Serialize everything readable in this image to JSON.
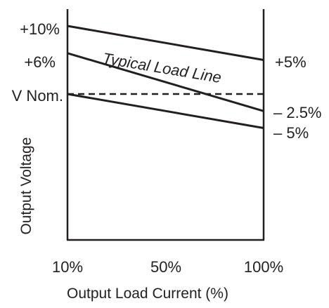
{
  "chart_data": {
    "type": "line",
    "title": "",
    "xlabel": "Output Load Current (%)",
    "ylabel": "Output Voltage",
    "x_ticks": [
      "10%",
      "50%",
      "100%"
    ],
    "x": [
      10,
      100
    ],
    "left_axis_labels": [
      "+10%",
      "+6%",
      "V Nom."
    ],
    "right_axis_labels": [
      "+5%",
      "– 2.5%",
      "– 5%"
    ],
    "series": [
      {
        "values": [
          10,
          5
        ],
        "style": "solid"
      },
      {
        "values": [
          6,
          -2.5
        ],
        "style": "solid"
      },
      {
        "values": [
          0,
          -5
        ],
        "style": "solid"
      },
      {
        "values": [
          0,
          0
        ],
        "style": "dashed"
      }
    ],
    "annotation": "Typical Load Line",
    "color": "#231f20"
  }
}
